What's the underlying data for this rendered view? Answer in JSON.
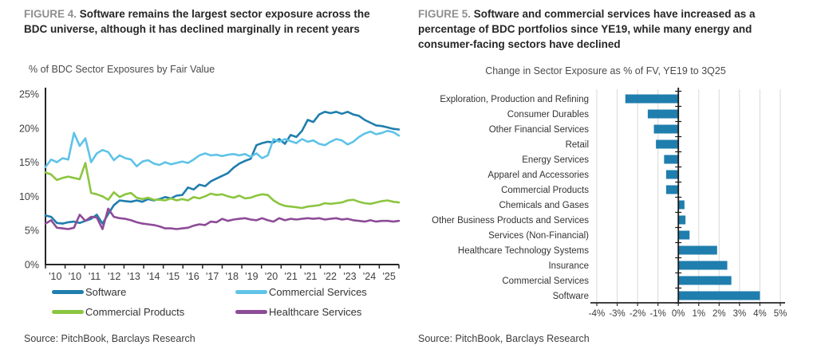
{
  "figure4": {
    "label": "FIGURE 4.",
    "title": "Software remains the largest sector exposure across the BDC universe, although it has declined marginally in recent years",
    "source": "Source: PitchBook, Barclays Research"
  },
  "figure5": {
    "label": "FIGURE 5.",
    "title": "Software and commercial services have increased as a percentage of BDC portfolios since YE19, while many energy and consumer-facing sectors have declined",
    "source": "Source: PitchBook, Barclays Research"
  },
  "chart_data": [
    {
      "type": "line",
      "title": "% of BDC Sector Exposures by Fair Value",
      "x_unit": "quarterly, 2010 to 3Q25",
      "x_tick_labels": [
        "'10",
        "'10",
        "'11",
        "'12",
        "'13",
        "'14",
        "'15",
        "'16",
        "'17",
        "'18",
        "'19",
        "'20",
        "'21",
        "'21",
        "'22",
        "'23",
        "'24",
        "'25"
      ],
      "y_ticks": [
        0,
        5,
        10,
        15,
        20,
        25
      ],
      "ylim": [
        0,
        25
      ],
      "grid": false,
      "legend_position": "bottom",
      "series": [
        {
          "name": "Software",
          "color": "#1f7ead",
          "values": [
            7.2,
            7.0,
            6.1,
            6.0,
            6.2,
            6.3,
            6.1,
            6.4,
            6.7,
            7.3,
            6.0,
            7.4,
            8.7,
            9.4,
            9.3,
            9.2,
            9.4,
            9.2,
            9.6,
            9.4,
            9.6,
            9.9,
            9.7,
            10.1,
            10.2,
            11.3,
            11.0,
            11.7,
            11.5,
            12.2,
            12.6,
            13.0,
            13.4,
            14.2,
            14.8,
            15.2,
            15.5,
            17.5,
            17.8,
            18.0,
            17.9,
            18.4,
            17.7,
            19.0,
            18.7,
            19.6,
            21.2,
            20.9,
            22.0,
            22.4,
            22.2,
            22.4,
            22.1,
            22.4,
            22.0,
            21.8,
            21.2,
            20.8,
            20.4,
            20.3,
            20.1,
            19.9,
            19.8
          ]
        },
        {
          "name": "Commercial Services",
          "color": "#5fc3e7",
          "values": [
            14.3,
            15.4,
            15.0,
            15.6,
            15.4,
            19.3,
            17.4,
            18.5,
            15.0,
            16.3,
            16.8,
            16.5,
            15.3,
            16.0,
            15.6,
            15.4,
            14.4,
            15.1,
            15.3,
            14.8,
            14.6,
            15.0,
            14.7,
            14.9,
            15.1,
            14.9,
            15.4,
            16.0,
            16.3,
            16.0,
            16.1,
            15.9,
            16.1,
            16.2,
            16.0,
            16.2,
            15.8,
            16.3,
            15.6,
            16.0,
            18.4,
            18.0,
            18.4,
            18.1,
            17.8,
            18.4,
            18.0,
            18.2,
            17.7,
            17.5,
            18.0,
            18.4,
            18.2,
            17.6,
            18.0,
            18.7,
            19.2,
            19.5,
            19.1,
            19.3,
            19.6,
            19.4,
            18.9
          ]
        },
        {
          "name": "Commercial Products",
          "color": "#8cc540",
          "values": [
            13.5,
            13.2,
            12.4,
            12.7,
            12.9,
            12.7,
            12.5,
            14.9,
            10.5,
            10.3,
            10.0,
            9.5,
            10.6,
            9.9,
            10.3,
            10.5,
            9.8,
            9.6,
            9.8,
            9.5,
            9.5,
            9.4,
            9.7,
            9.4,
            9.6,
            9.4,
            9.9,
            9.7,
            10.0,
            10.4,
            10.2,
            10.3,
            10.0,
            9.8,
            10.1,
            9.7,
            9.8,
            10.1,
            10.3,
            10.2,
            9.4,
            8.9,
            8.6,
            8.5,
            8.4,
            8.3,
            8.5,
            8.6,
            8.7,
            9.0,
            8.9,
            9.0,
            9.1,
            9.4,
            9.5,
            9.2,
            9.0,
            8.9,
            9.1,
            9.3,
            9.4,
            9.2,
            9.1
          ]
        },
        {
          "name": "Healthcare Services",
          "color": "#8d4c97",
          "values": [
            6.0,
            6.5,
            5.4,
            5.3,
            5.2,
            5.4,
            7.3,
            6.4,
            7.0,
            6.9,
            5.2,
            8.2,
            7.0,
            6.8,
            6.7,
            6.5,
            6.2,
            6.0,
            5.9,
            5.8,
            5.6,
            5.3,
            5.3,
            5.2,
            5.3,
            5.4,
            5.7,
            5.9,
            5.8,
            6.3,
            6.2,
            6.7,
            6.4,
            6.6,
            6.7,
            6.8,
            6.6,
            6.5,
            6.8,
            6.5,
            6.3,
            6.8,
            6.5,
            6.7,
            6.6,
            6.7,
            6.8,
            6.7,
            6.8,
            6.6,
            6.7,
            6.8,
            6.6,
            6.7,
            6.5,
            6.4,
            6.3,
            6.5,
            6.3,
            6.4,
            6.4,
            6.3,
            6.4
          ]
        }
      ]
    },
    {
      "type": "bar",
      "orientation": "horizontal",
      "title": "Change in Sector Exposure as % of FV, YE19 to 3Q25",
      "bar_color": "#1f7ead",
      "grid": true,
      "xlim": [
        -4,
        5
      ],
      "x_ticks": [
        -4,
        -3,
        -2,
        -1,
        0,
        1,
        2,
        3,
        4,
        5
      ],
      "categories": [
        "Exploration, Production and Refining",
        "Consumer Durables",
        "Other Financial Services",
        "Retail",
        "Energy Services",
        "Apparel and Accessories",
        "Commercial Products",
        "Chemicals and Gases",
        "Other Business Products and Services",
        "Services (Non-Financial)",
        "Healthcare Technology Systems",
        "Insurance",
        "Commercial Services",
        "Software"
      ],
      "values": [
        -2.6,
        -1.5,
        -1.2,
        -1.1,
        -0.7,
        -0.6,
        -0.6,
        0.3,
        0.35,
        0.55,
        1.9,
        2.4,
        2.6,
        4.0
      ]
    }
  ]
}
